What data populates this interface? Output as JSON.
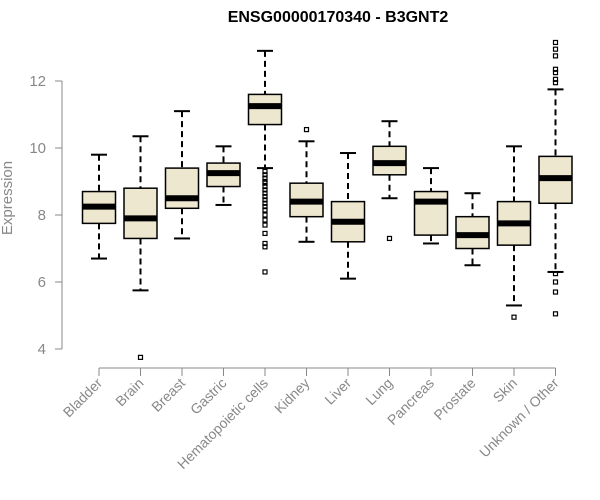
{
  "chart_data": {
    "type": "boxplot",
    "title": "ENSG00000170340 - B3GNT2",
    "xlabel": "",
    "ylabel": "Expression",
    "ylim": [
      3.6,
      13.4
    ],
    "yticks": [
      4,
      6,
      8,
      10,
      12
    ],
    "grid": false,
    "categories": [
      "Bladder",
      "Brain",
      "Breast",
      "Gastric",
      "Hematopoietic cells",
      "Kidney",
      "Liver",
      "Lung",
      "Pancreas",
      "Prostate",
      "Skin",
      "Unknown / Other"
    ],
    "boxes": [
      {
        "min": 6.7,
        "q1": 7.75,
        "median": 8.25,
        "q3": 8.7,
        "max": 9.8,
        "outliers": []
      },
      {
        "min": 5.75,
        "q1": 7.3,
        "median": 7.9,
        "q3": 8.8,
        "max": 10.35,
        "outliers": [
          3.75
        ]
      },
      {
        "min": 7.3,
        "q1": 8.2,
        "median": 8.5,
        "q3": 9.4,
        "max": 11.1,
        "outliers": []
      },
      {
        "min": 8.3,
        "q1": 8.85,
        "median": 9.25,
        "q3": 9.55,
        "max": 10.05,
        "outliers": []
      },
      {
        "min": 9.4,
        "q1": 10.7,
        "median": 11.25,
        "q3": 11.6,
        "max": 12.9,
        "outliers": [
          9.3,
          9.2,
          9.1,
          9.0,
          8.95,
          8.85,
          8.75,
          8.65,
          8.55,
          8.45,
          8.35,
          8.25,
          8.15,
          8.0,
          7.85,
          7.7,
          7.45,
          7.15,
          7.05,
          6.3
        ]
      },
      {
        "min": 7.2,
        "q1": 7.95,
        "median": 8.4,
        "q3": 8.95,
        "max": 10.2,
        "outliers": [
          10.55
        ]
      },
      {
        "min": 6.1,
        "q1": 7.2,
        "median": 7.8,
        "q3": 8.4,
        "max": 9.85,
        "outliers": []
      },
      {
        "min": 8.5,
        "q1": 9.2,
        "median": 9.55,
        "q3": 10.05,
        "max": 10.8,
        "outliers": [
          7.3
        ]
      },
      {
        "min": 7.15,
        "q1": 7.4,
        "median": 8.4,
        "q3": 8.7,
        "max": 9.4,
        "outliers": []
      },
      {
        "min": 6.5,
        "q1": 7.0,
        "median": 7.4,
        "q3": 7.95,
        "max": 8.65,
        "outliers": []
      },
      {
        "min": 5.3,
        "q1": 7.1,
        "median": 7.75,
        "q3": 8.4,
        "max": 10.05,
        "outliers": [
          4.95
        ]
      },
      {
        "min": 6.3,
        "q1": 8.35,
        "median": 9.1,
        "q3": 9.75,
        "max": 11.75,
        "outliers": [
          13.15,
          12.95,
          12.75,
          12.35,
          12.25,
          12.05,
          11.95,
          6.25,
          6.0,
          5.7,
          5.05
        ]
      }
    ]
  }
}
